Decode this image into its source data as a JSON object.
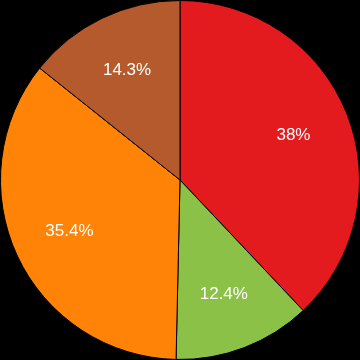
{
  "chart_data": {
    "type": "pie",
    "values": [
      38,
      12.4,
      35.4,
      14.3
    ],
    "value_labels": [
      "38%",
      "12.4%",
      "35.4%",
      "14.3%"
    ],
    "colors": [
      "#e31b1f",
      "#8bc146",
      "#ff8306",
      "#b45a2c"
    ],
    "data_labels": true
  }
}
